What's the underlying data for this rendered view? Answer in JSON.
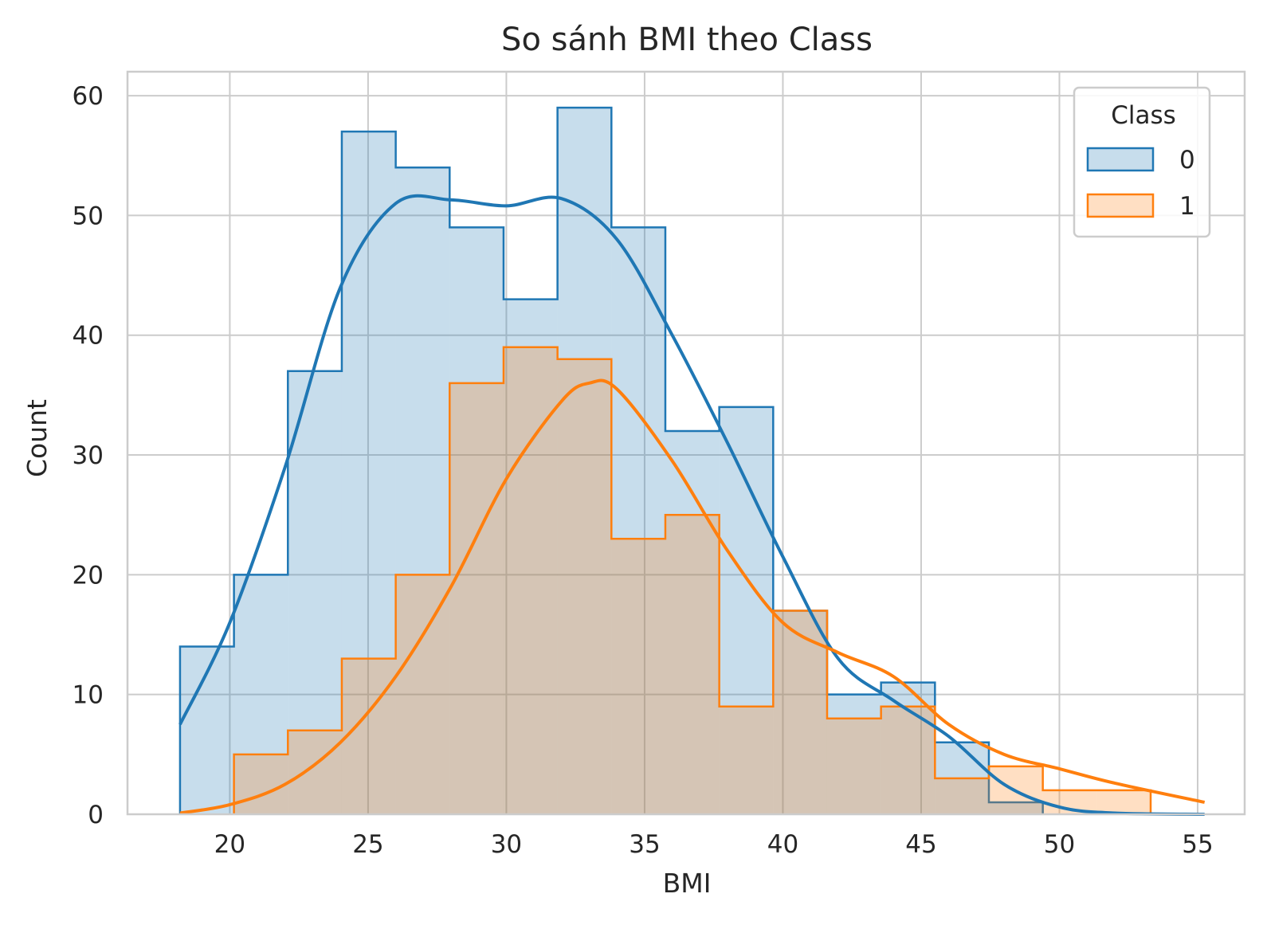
{
  "chart_data": {
    "type": "histogram",
    "title": "So sánh BMI theo Class",
    "xlabel": "BMI",
    "ylabel": "Count",
    "xlim": [
      16.3,
      56.7
    ],
    "ylim": [
      0,
      62
    ],
    "xticks": [
      20,
      25,
      30,
      35,
      40,
      45,
      50,
      55
    ],
    "yticks": [
      0,
      10,
      20,
      30,
      40,
      50,
      60
    ],
    "grid": true,
    "legend": {
      "title": "Class",
      "position": "top-right"
    },
    "bin_edges": [
      18.2,
      20.15,
      22.1,
      24.05,
      26.0,
      27.95,
      29.9,
      31.85,
      33.8,
      35.75,
      37.7,
      39.65,
      41.6,
      43.55,
      45.5,
      47.45,
      49.4,
      51.35,
      53.3,
      55.25
    ],
    "series": [
      {
        "name": "0",
        "color": "#1f77b4",
        "fill": "#c5dbec",
        "counts": [
          14,
          20,
          37,
          57,
          54,
          49,
          43,
          59,
          49,
          32,
          34,
          17,
          10,
          11,
          6,
          1,
          0,
          0,
          0
        ],
        "kde": [
          [
            18.2,
            7.5
          ],
          [
            20,
            16
          ],
          [
            22,
            29
          ],
          [
            24,
            44
          ],
          [
            26,
            51
          ],
          [
            28,
            51.3
          ],
          [
            30,
            50.8
          ],
          [
            32,
            51.4
          ],
          [
            34,
            48
          ],
          [
            36,
            40
          ],
          [
            38,
            31
          ],
          [
            40,
            21.5
          ],
          [
            42,
            13
          ],
          [
            44,
            9.5
          ],
          [
            46,
            6.5
          ],
          [
            48,
            2.5
          ],
          [
            50,
            0.6
          ],
          [
            52,
            0.1
          ],
          [
            55.25,
            0
          ]
        ]
      },
      {
        "name": "1",
        "color": "#ff7f0e",
        "fill": "#ffd6b5",
        "counts": [
          0,
          5,
          7,
          13,
          20,
          36,
          39,
          38,
          23,
          25,
          9,
          17,
          8,
          9,
          3,
          4,
          2,
          2,
          0
        ],
        "kde": [
          [
            18.2,
            0.1
          ],
          [
            20,
            0.8
          ],
          [
            22,
            2.5
          ],
          [
            24,
            6
          ],
          [
            26,
            11.5
          ],
          [
            28,
            19
          ],
          [
            30,
            28
          ],
          [
            32,
            34.5
          ],
          [
            33,
            36
          ],
          [
            34,
            35.5
          ],
          [
            36,
            29.5
          ],
          [
            38,
            22
          ],
          [
            40,
            16
          ],
          [
            42,
            13.5
          ],
          [
            44,
            11.5
          ],
          [
            46,
            7.5
          ],
          [
            48,
            5
          ],
          [
            50,
            3.8
          ],
          [
            52,
            2.6
          ],
          [
            55.25,
            1
          ]
        ]
      }
    ]
  }
}
